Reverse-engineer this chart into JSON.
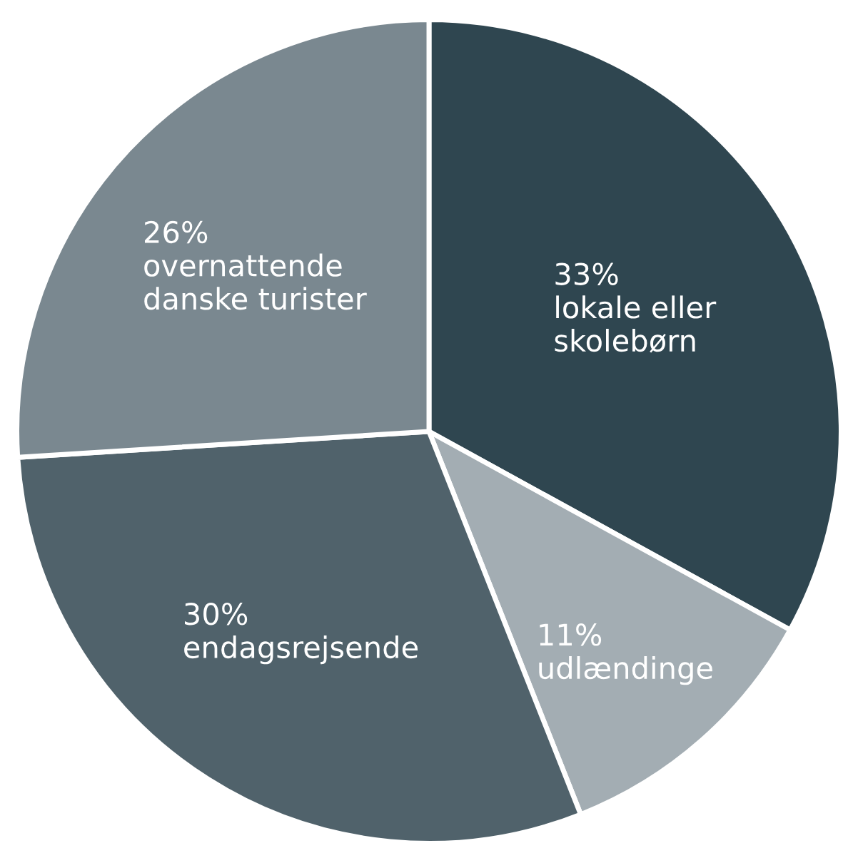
{
  "chart_data": {
    "type": "pie",
    "categories": [
      "lokale eller\nskolebørn",
      "udlændinge",
      "endagsrejsende",
      "overnattende\ndanske turister"
    ],
    "values": [
      33,
      11,
      30,
      26
    ],
    "value_labels": [
      "33%",
      "11%",
      "30%",
      "26%"
    ],
    "colors": [
      "#2f4650",
      "#a3adb3",
      "#50626b",
      "#7a8890"
    ],
    "legend": false
  }
}
